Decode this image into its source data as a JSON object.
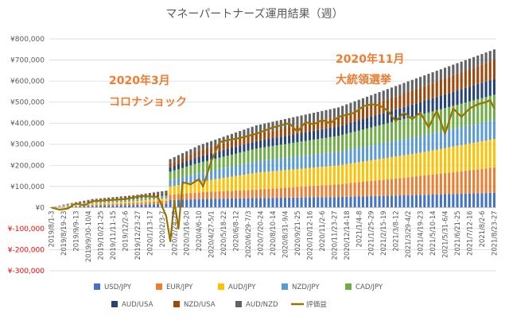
{
  "chart_data": {
    "type": "bar",
    "stacked": true,
    "title": "マネーパートナーズ運用結果（週）",
    "xlabel": "",
    "ylabel": "",
    "ylim": [
      -300000,
      800000
    ],
    "ytick_step": 100000,
    "y_tick_labels": [
      "¥800,000",
      "¥700,000",
      "¥600,000",
      "¥500,000",
      "¥400,000",
      "¥300,000",
      "¥200,000",
      "¥100,000",
      "¥0",
      "¥-100,000",
      "¥-200,000",
      "¥-300,000"
    ],
    "negative_tick_color": "#FF0000",
    "grid": true,
    "bar_count": 109,
    "x_tick_labels": [
      "2019/8/1-3",
      "2019/8/19-23",
      "2019/9/9-13",
      "2019/9/30-10/4",
      "2019/10/21-25",
      "2019/11/11-15",
      "2019/12/2-6",
      "2019/12/23-27",
      "2020/1/13-17",
      "2020/2/3-7",
      "2020/2/24-28",
      "2020/3/16-20",
      "2020/4/6-10",
      "2020/4/27-5/1",
      "2020/5/18-22",
      "2020/6/8-12",
      "2020/6/29-7/3",
      "2020/7/20-24",
      "2020/8/10-14",
      "2020/8/31-9/4",
      "2020/9/21-25",
      "2020/10/12-16",
      "2020/11/2-6",
      "2020/11/23-27",
      "2020/12/14-18",
      "2021/1/4-8",
      "2021/1/25-29",
      "2021/2/15-19",
      "2021/3/8-12",
      "2021/3/29-4/2",
      "2021/4/19-23",
      "2021/5/10-14",
      "2021/5/31-6/4",
      "2021/6/21-25",
      "2021/7/12-16",
      "2021/8/2-6",
      "2021/8/23-27"
    ],
    "series": [
      {
        "name": "USD/JPY",
        "color": "#4472C4",
        "anchors": [
          [
            0,
            0
          ],
          [
            3,
            2000
          ],
          [
            10,
            8000
          ],
          [
            20,
            12000
          ],
          [
            28,
            18000
          ],
          [
            29,
            35000
          ],
          [
            36,
            40000
          ],
          [
            50,
            45000
          ],
          [
            70,
            50000
          ],
          [
            90,
            60000
          ],
          [
            108,
            70000
          ]
        ]
      },
      {
        "name": "EUR/JPY",
        "color": "#ED7D31",
        "anchors": [
          [
            0,
            0
          ],
          [
            3,
            2000
          ],
          [
            10,
            6000
          ],
          [
            20,
            10000
          ],
          [
            28,
            14000
          ],
          [
            29,
            25000
          ],
          [
            36,
            32000
          ],
          [
            50,
            40000
          ],
          [
            70,
            60000
          ],
          [
            90,
            90000
          ],
          [
            108,
            120000
          ]
        ]
      },
      {
        "name": "AUD/JPY",
        "color": "#FFC000",
        "anchors": [
          [
            0,
            0
          ],
          [
            3,
            3000
          ],
          [
            10,
            6000
          ],
          [
            20,
            8000
          ],
          [
            28,
            12000
          ],
          [
            29,
            40000
          ],
          [
            36,
            50000
          ],
          [
            50,
            80000
          ],
          [
            70,
            90000
          ],
          [
            90,
            110000
          ],
          [
            108,
            135000
          ]
        ]
      },
      {
        "name": "NZD/JPY",
        "color": "#5B9BD5",
        "anchors": [
          [
            0,
            0
          ],
          [
            3,
            2000
          ],
          [
            10,
            5000
          ],
          [
            20,
            6000
          ],
          [
            28,
            8000
          ],
          [
            29,
            30000
          ],
          [
            36,
            40000
          ],
          [
            50,
            55000
          ],
          [
            70,
            65000
          ],
          [
            90,
            80000
          ],
          [
            108,
            90000
          ]
        ]
      },
      {
        "name": "CAD/JPY",
        "color": "#70AD47",
        "anchors": [
          [
            0,
            0
          ],
          [
            3,
            2000
          ],
          [
            10,
            3000
          ],
          [
            20,
            5000
          ],
          [
            28,
            6000
          ],
          [
            29,
            40000
          ],
          [
            36,
            50000
          ],
          [
            50,
            60000
          ],
          [
            70,
            75000
          ],
          [
            90,
            100000
          ],
          [
            108,
            120000
          ]
        ]
      },
      {
        "name": "AUD/USA",
        "color": "#264478",
        "anchors": [
          [
            0,
            0
          ],
          [
            3,
            1000
          ],
          [
            10,
            3000
          ],
          [
            20,
            4000
          ],
          [
            28,
            5000
          ],
          [
            29,
            20000
          ],
          [
            36,
            30000
          ],
          [
            50,
            35000
          ],
          [
            70,
            45000
          ],
          [
            90,
            60000
          ],
          [
            108,
            75000
          ]
        ]
      },
      {
        "name": "NZD/USA",
        "color": "#9E480E",
        "anchors": [
          [
            0,
            0
          ],
          [
            3,
            1000
          ],
          [
            10,
            4000
          ],
          [
            20,
            5000
          ],
          [
            28,
            6000
          ],
          [
            29,
            20000
          ],
          [
            36,
            28000
          ],
          [
            50,
            35000
          ],
          [
            70,
            45000
          ],
          [
            90,
            70000
          ],
          [
            108,
            90000
          ]
        ]
      },
      {
        "name": "AUD/NZD",
        "color": "#636363",
        "anchors": [
          [
            0,
            0
          ],
          [
            3,
            1000
          ],
          [
            10,
            5000
          ],
          [
            20,
            8000
          ],
          [
            28,
            11000
          ],
          [
            29,
            20000
          ],
          [
            36,
            25000
          ],
          [
            50,
            40000
          ],
          [
            70,
            45000
          ],
          [
            90,
            50000
          ],
          [
            108,
            50000
          ]
        ]
      }
    ],
    "line_series": {
      "name": "評価益",
      "color": "#997300",
      "anchors": [
        [
          0,
          0
        ],
        [
          2,
          -10000
        ],
        [
          4,
          -5000
        ],
        [
          6,
          20000
        ],
        [
          8,
          10000
        ],
        [
          10,
          30000
        ],
        [
          14,
          35000
        ],
        [
          18,
          40000
        ],
        [
          22,
          55000
        ],
        [
          26,
          50000
        ],
        [
          28,
          -40000
        ],
        [
          29,
          -160000
        ],
        [
          30,
          30000
        ],
        [
          31,
          -100000
        ],
        [
          32,
          120000
        ],
        [
          34,
          110000
        ],
        [
          36,
          135000
        ],
        [
          37,
          100000
        ],
        [
          39,
          220000
        ],
        [
          41,
          310000
        ],
        [
          43,
          320000
        ],
        [
          46,
          330000
        ],
        [
          50,
          350000
        ],
        [
          54,
          380000
        ],
        [
          58,
          400000
        ],
        [
          60,
          360000
        ],
        [
          62,
          405000
        ],
        [
          64,
          395000
        ],
        [
          66,
          415000
        ],
        [
          68,
          400000
        ],
        [
          70,
          430000
        ],
        [
          72,
          440000
        ],
        [
          74,
          450000
        ],
        [
          76,
          480000
        ],
        [
          78,
          490000
        ],
        [
          80,
          485000
        ],
        [
          82,
          460000
        ],
        [
          84,
          410000
        ],
        [
          86,
          450000
        ],
        [
          88,
          420000
        ],
        [
          90,
          450000
        ],
        [
          92,
          380000
        ],
        [
          94,
          460000
        ],
        [
          96,
          350000
        ],
        [
          98,
          470000
        ],
        [
          100,
          430000
        ],
        [
          102,
          470000
        ],
        [
          104,
          490000
        ],
        [
          106,
          500000
        ],
        [
          107,
          510000
        ],
        [
          108,
          470000
        ]
      ]
    },
    "annotations": [
      {
        "line1": "2020年3月",
        "line2": "コロナショック",
        "position": "upper-left-center"
      },
      {
        "line1": "2020年11月",
        "line2": "大統領選挙",
        "position": "upper-center"
      }
    ],
    "legend": {
      "placement": "bottom",
      "rows": 2
    }
  }
}
